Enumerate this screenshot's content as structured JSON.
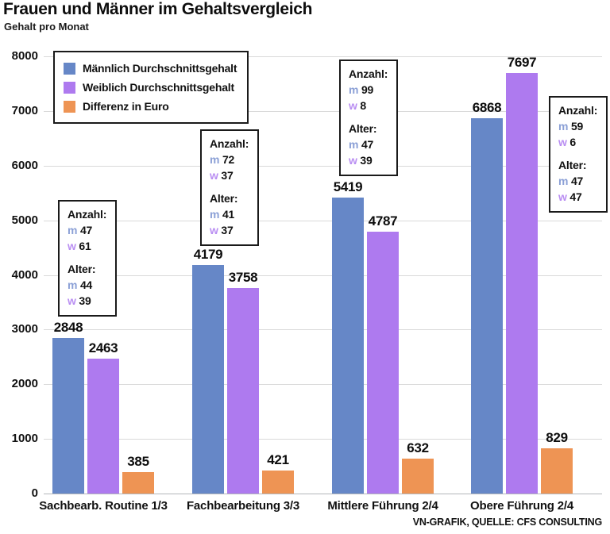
{
  "title": "Frauen und Männer im Gehaltsvergleich",
  "subtitle": "Gehalt pro Monat",
  "footer": "VN-GRAFIK, QUELLE: CFS CONSULTING",
  "colors": {
    "male": "#6687c7",
    "female": "#ae7aef",
    "diff": "#ee9454",
    "male_letter": "#8ba0d6",
    "female_letter": "#b98ef2",
    "grid": "#d9d9d9"
  },
  "legend": {
    "items": [
      {
        "label": "Männlich Durchschnittsgehalt",
        "color_key": "male"
      },
      {
        "label": "Weiblich Durchschnittsgehalt",
        "color_key": "female"
      },
      {
        "label": "Differenz in Euro",
        "color_key": "diff"
      }
    ]
  },
  "chart_data": {
    "type": "bar",
    "title": "Frauen und Männer im Gehaltsvergleich",
    "subtitle": "Gehalt pro Monat",
    "categories": [
      "Sachbearb. Routine 1/3",
      "Fachbearbeitung 3/3",
      "Mittlere Führung 2/4",
      "Obere Führung 2/4"
    ],
    "series": [
      {
        "name": "Männlich Durchschnittsgehalt",
        "color_key": "male",
        "values": [
          2848,
          4179,
          5419,
          6868
        ]
      },
      {
        "name": "Weiblich Durchschnittsgehalt",
        "color_key": "female",
        "values": [
          2463,
          3758,
          4787,
          7697
        ]
      },
      {
        "name": "Differenz in Euro",
        "color_key": "diff",
        "values": [
          385,
          421,
          632,
          829
        ]
      }
    ],
    "ylim": [
      0,
      8000
    ],
    "yticks": [
      0,
      1000,
      2000,
      3000,
      4000,
      5000,
      6000,
      7000,
      8000
    ],
    "grid": true,
    "legend_position": "top-left"
  },
  "info_labels": {
    "count": "Anzahl:",
    "age": "Alter:",
    "m": "m",
    "w": "w"
  },
  "annotations": [
    {
      "m_count": "47",
      "w_count": "61",
      "m_age": "44",
      "w_age": "39"
    },
    {
      "m_count": "72",
      "w_count": "37",
      "m_age": "41",
      "w_age": "37"
    },
    {
      "m_count": "99",
      "w_count": "8",
      "m_age": "47",
      "w_age": "39"
    },
    {
      "m_count": "59",
      "w_count": "6",
      "m_age": "47",
      "w_age": "47"
    }
  ]
}
